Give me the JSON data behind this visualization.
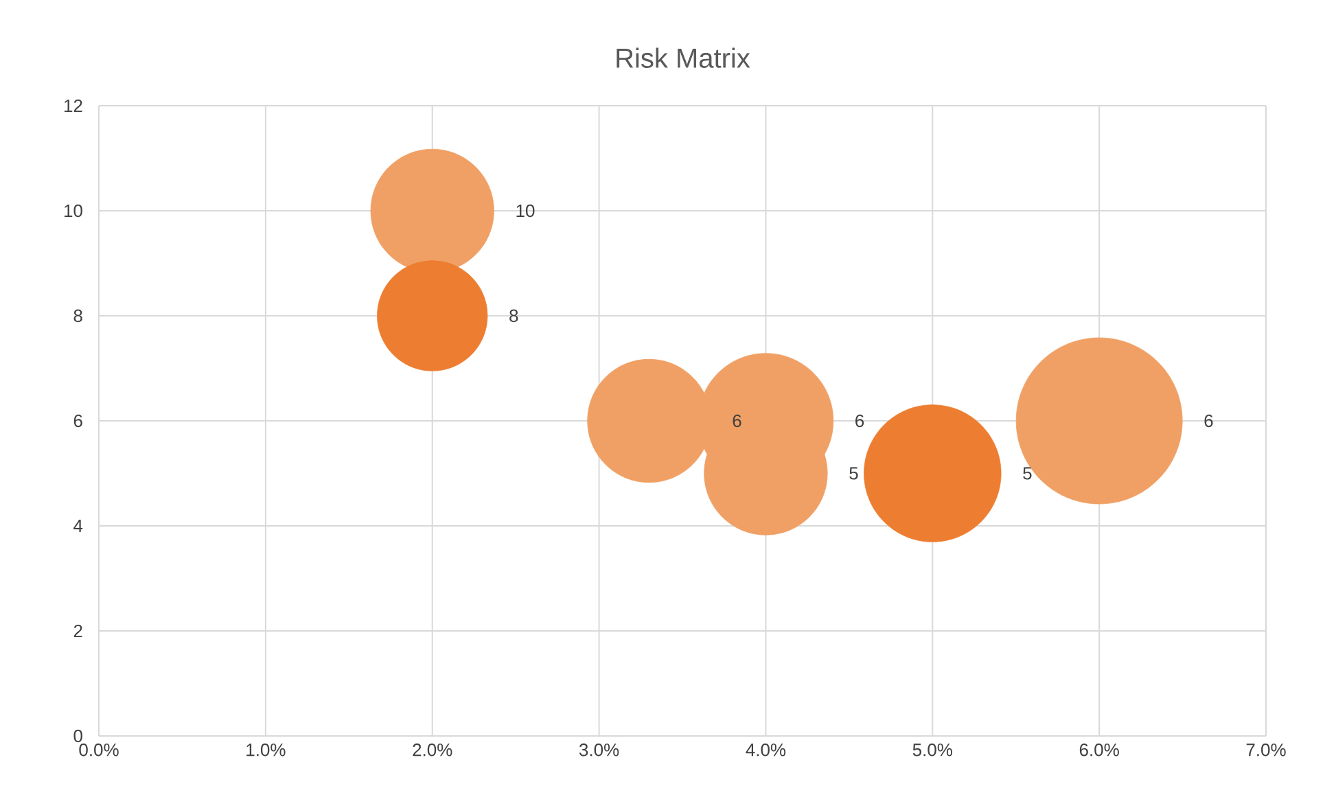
{
  "chart_data": {
    "type": "bubble",
    "title": "Risk Matrix",
    "x": [
      2,
      2,
      3.3,
      4,
      4,
      5,
      6
    ],
    "values": [
      10,
      8,
      6,
      6,
      5,
      5,
      6
    ],
    "sizes": [
      0.55,
      0.44,
      0.55,
      0.66,
      0.55,
      0.68,
      1
    ],
    "colors": [
      "#f0a064",
      "#ed7d31",
      "#f0a064",
      "#f0a064",
      "#f0a064",
      "#ed7d31",
      "#f0a064"
    ],
    "value_labels": [
      "10",
      "8",
      "6",
      "6",
      "5",
      "5",
      "6"
    ],
    "xlim": [
      0,
      7
    ],
    "xticks": [
      {
        "value": 0,
        "label": "0.0%"
      },
      {
        "value": 1,
        "label": "1.0%"
      },
      {
        "value": 2,
        "label": "2.0%"
      },
      {
        "value": 3,
        "label": "3.0%"
      },
      {
        "value": 4,
        "label": "4.0%"
      },
      {
        "value": 5,
        "label": "5.0%"
      },
      {
        "value": 6,
        "label": "6.0%"
      },
      {
        "value": 7,
        "label": "7.0%"
      }
    ],
    "ylim": [
      0,
      12
    ],
    "yticks": [
      0,
      2,
      4,
      6,
      8,
      10,
      12
    ],
    "grid": true
  }
}
